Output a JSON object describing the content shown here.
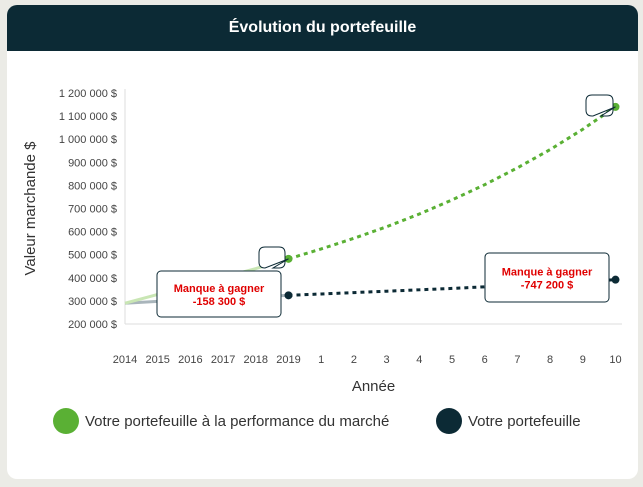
{
  "header": {
    "title": "Évolution du portefeuille"
  },
  "chart_data": {
    "type": "line",
    "title": "Évolution du portefeuille",
    "xlabel": "Année",
    "ylabel": "Valeur marchande $",
    "categories": [
      "2014",
      "2015",
      "2016",
      "2017",
      "2018",
      "2019",
      "1",
      "2",
      "3",
      "4",
      "5",
      "6",
      "7",
      "8",
      "9",
      "10"
    ],
    "yticks": [
      "1 200 000 $",
      "1 100 000 $",
      "1 000 000 $",
      "900 000 $",
      "800 000 $",
      "700 000 $",
      "600 000 $",
      "500 000 $",
      "400 000 $",
      "300 000 $",
      "200 000 $"
    ],
    "ylim": [
      200000,
      1200000
    ],
    "series": [
      {
        "name": "Votre portefeuille à la performance du marché",
        "color": "#5ab034",
        "values": [
          290000,
          328000,
          365000,
          402000,
          440000,
          482000,
          525000,
          571000,
          621000,
          676000,
          737000,
          803000,
          876000,
          955000,
          1043000,
          1140000
        ]
      },
      {
        "name": "Votre portefeuille",
        "color": "#0c2a35",
        "values": [
          290000,
          298000,
          306000,
          313000,
          319000,
          324000,
          330000,
          336000,
          342000,
          348000,
          354000,
          361000,
          368000,
          375000,
          383000,
          392000
        ]
      }
    ],
    "annotations": [
      {
        "label": "Manque à gagner",
        "value": "-158 300 $"
      },
      {
        "label": "Manque à gagner",
        "value": "-747 200 $"
      }
    ]
  },
  "legend": {
    "items": [
      {
        "label": "Votre portefeuille à la performance du marché",
        "color": "#5ab034"
      },
      {
        "label": "Votre portefeuille",
        "color": "#0c2a35"
      }
    ]
  }
}
